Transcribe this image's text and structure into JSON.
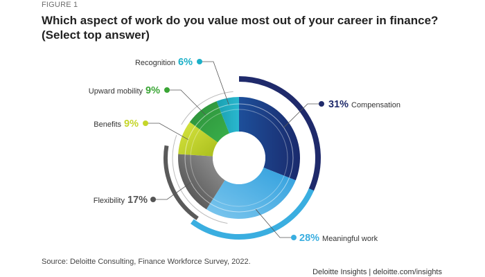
{
  "figure_label": "FIGURE 1",
  "source": "Source: Deloitte Consulting, Finance Workforce Survey, 2022.",
  "footer": "Deloitte Insights | deloitte.com/insights",
  "chart_data": {
    "type": "pie",
    "title": "Which aspect of work do you value most out of your career in finance?",
    "subtitle": "(Select top answer)",
    "unit": "%",
    "slices": [
      {
        "label": "Compensation",
        "value": 31,
        "pct_label": "31%",
        "color": "#1f2a6b"
      },
      {
        "label": "Meaningful work",
        "value": 28,
        "pct_label": "28%",
        "color": "#3aaee0"
      },
      {
        "label": "Flexibility",
        "value": 17,
        "pct_label": "17%",
        "color": "#5a5a5a"
      },
      {
        "label": "Benefits",
        "value": 9,
        "pct_label": "9%",
        "color": "#c5d62a"
      },
      {
        "label": "Upward mobility",
        "value": 9,
        "pct_label": "9%",
        "color": "#3aa535"
      },
      {
        "label": "Recognition",
        "value": 6,
        "pct_label": "6%",
        "color": "#1cb0c8"
      }
    ]
  }
}
